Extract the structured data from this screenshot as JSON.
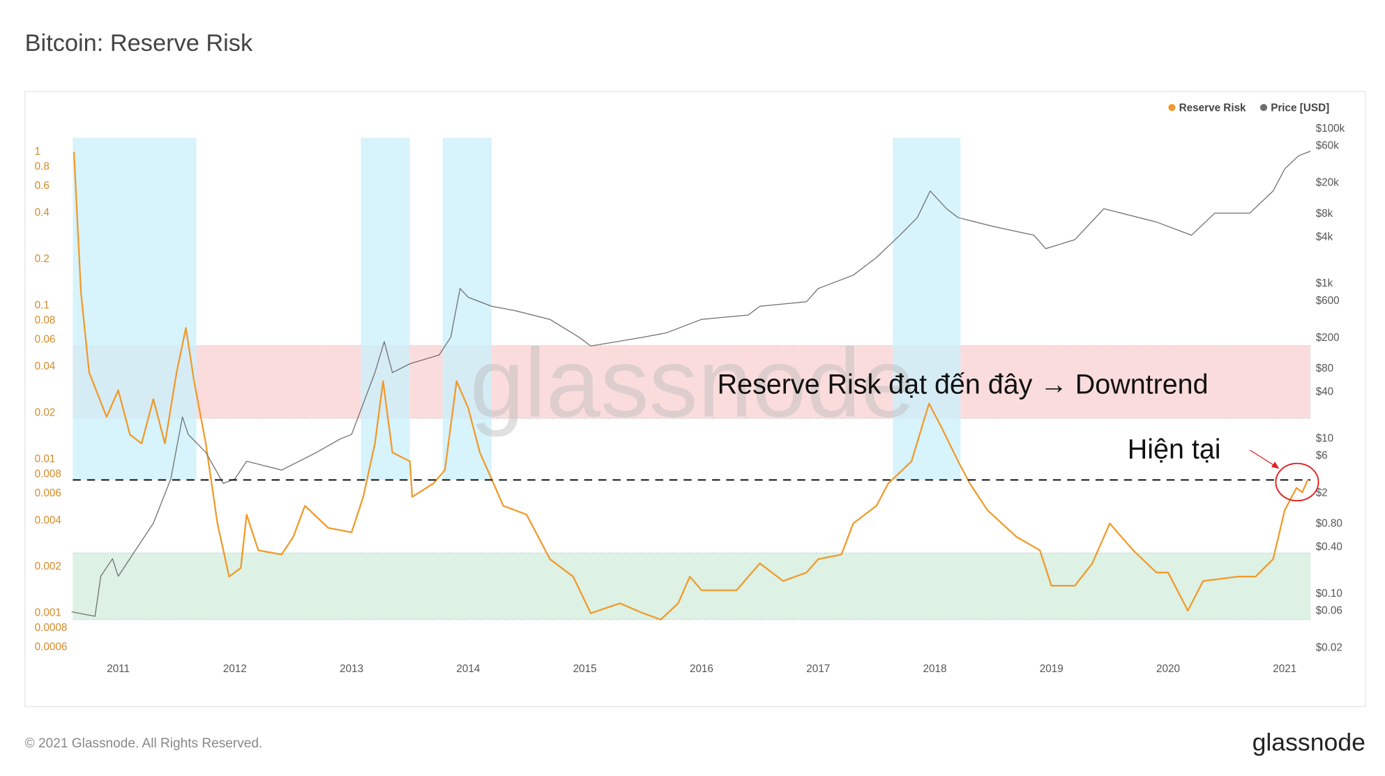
{
  "chart_data": {
    "type": "line",
    "title": "Bitcoin: Reserve Risk",
    "ylog": true,
    "y2log": true,
    "xlim": [
      2010.61,
      2021.22
    ],
    "xticks": [
      2011,
      2012,
      2013,
      2014,
      2015,
      2016,
      2017,
      2018,
      2019,
      2020,
      2021
    ],
    "ylim": [
      0.00052,
      1.237
    ],
    "yticks": [
      1,
      0.8,
      0.6,
      0.4,
      0.2,
      0.1,
      0.08,
      0.06,
      0.04,
      0.02,
      0.01,
      0.008,
      0.006,
      0.004,
      0.002,
      0.001,
      0.0008,
      0.0006
    ],
    "y2lim": [
      0.0154,
      76900
    ],
    "y2ticks": [
      {
        "value": 100000,
        "label": "$100k"
      },
      {
        "value": 60000,
        "label": "$60k"
      },
      {
        "value": 20000,
        "label": "$20k"
      },
      {
        "value": 8000,
        "label": "$8k"
      },
      {
        "value": 4000,
        "label": "$4k"
      },
      {
        "value": 1000,
        "label": "$1k"
      },
      {
        "value": 600,
        "label": "$600"
      },
      {
        "value": 200,
        "label": "$200"
      },
      {
        "value": 80,
        "label": "$80"
      },
      {
        "value": 40,
        "label": "$40"
      },
      {
        "value": 10,
        "label": "$10"
      },
      {
        "value": 6,
        "label": "$6"
      },
      {
        "value": 2,
        "label": "$2"
      },
      {
        "value": 0.8,
        "label": "$0.80"
      },
      {
        "value": 0.4,
        "label": "$0.40"
      },
      {
        "value": 0.1,
        "label": "$0.10"
      },
      {
        "value": 0.06,
        "label": "$0.06"
      },
      {
        "value": 0.02,
        "label": "$0.02"
      }
    ],
    "series": [
      {
        "name": "Reserve Risk",
        "color": "#f09a2b",
        "axis": "y",
        "x": [
          2010.62,
          2010.68,
          2010.75,
          2010.9,
          2011.0,
          2011.1,
          2011.2,
          2011.3,
          2011.4,
          2011.5,
          2011.58,
          2011.65,
          2011.75,
          2011.85,
          2011.95,
          2012.05,
          2012.1,
          2012.2,
          2012.4,
          2012.5,
          2012.6,
          2012.8,
          2013.0,
          2013.1,
          2013.2,
          2013.27,
          2013.35,
          2013.5,
          2013.52,
          2013.7,
          2013.8,
          2013.9,
          2014.0,
          2014.1,
          2014.2,
          2014.3,
          2014.5,
          2014.7,
          2014.9,
          2015.05,
          2015.3,
          2015.5,
          2015.65,
          2015.8,
          2015.9,
          2016.0,
          2016.3,
          2016.5,
          2016.7,
          2016.9,
          2017.0,
          2017.2,
          2017.3,
          2017.5,
          2017.6,
          2017.8,
          2017.95,
          2018.05,
          2018.2,
          2018.3,
          2018.45,
          2018.7,
          2018.9,
          2019.0,
          2019.2,
          2019.35,
          2019.5,
          2019.7,
          2019.9,
          2020.0,
          2020.17,
          2020.3,
          2020.6,
          2020.75,
          2020.9,
          2021.0,
          2021.1,
          2021.15,
          2021.2
        ],
        "values": [
          1.0,
          0.122,
          0.0368,
          0.0189,
          0.0282,
          0.0145,
          0.0127,
          0.0247,
          0.0127,
          0.0368,
          0.0717,
          0.0323,
          0.0127,
          0.00384,
          0.00173,
          0.00197,
          0.00438,
          0.00257,
          0.00241,
          0.00314,
          0.005,
          0.00359,
          0.00336,
          0.00571,
          0.0127,
          0.0323,
          0.0111,
          0.00973,
          0.00571,
          0.00698,
          0.00852,
          0.0323,
          0.0216,
          0.0111,
          0.00747,
          0.005,
          0.00438,
          0.00225,
          0.00173,
          0.001,
          0.00116,
          0.001,
          0.00091,
          0.00116,
          0.00173,
          0.00141,
          0.00141,
          0.00211,
          0.00162,
          0.00184,
          0.00225,
          0.00241,
          0.00384,
          0.005,
          0.00698,
          0.00973,
          0.0231,
          0.0166,
          0.00973,
          0.00698,
          0.00469,
          0.00314,
          0.00257,
          0.00151,
          0.00151,
          0.00211,
          0.00384,
          0.00257,
          0.00184,
          0.00184,
          0.00104,
          0.00162,
          0.00173,
          0.00173,
          0.00225,
          0.00469,
          0.00653,
          0.00611,
          0.00747
        ]
      },
      {
        "name": "Price [USD]",
        "color": "#6e6e6e",
        "axis": "y2",
        "x": [
          2010.6,
          2010.8,
          2010.85,
          2010.95,
          2011.0,
          2011.3,
          2011.45,
          2011.55,
          2011.6,
          2011.75,
          2011.9,
          2012.0,
          2012.1,
          2012.4,
          2012.7,
          2012.9,
          2013.0,
          2013.2,
          2013.28,
          2013.35,
          2013.5,
          2013.75,
          2013.85,
          2013.93,
          2014.0,
          2014.2,
          2014.4,
          2014.7,
          2014.95,
          2015.05,
          2015.5,
          2015.7,
          2016.0,
          2016.4,
          2016.5,
          2016.9,
          2017.0,
          2017.3,
          2017.5,
          2017.7,
          2017.85,
          2017.96,
          2018.1,
          2018.2,
          2018.5,
          2018.85,
          2018.95,
          2019.2,
          2019.45,
          2019.6,
          2019.9,
          2020.2,
          2020.4,
          2020.7,
          2020.9,
          2021.0,
          2021.12,
          2021.22
        ],
        "values": [
          0.0589,
          0.0515,
          0.169,
          0.285,
          0.169,
          0.817,
          3.05,
          19.2,
          11.4,
          6.71,
          2.67,
          3.05,
          5.15,
          3.96,
          6.71,
          9.95,
          11.4,
          71.6,
          180,
          71.6,
          93.3,
          121,
          205,
          873,
          671,
          515,
          452,
          348,
          205,
          158,
          205,
          234,
          348,
          396,
          515,
          589,
          873,
          1295,
          2190,
          4240,
          7170,
          15800,
          9330,
          7170,
          5510,
          4240,
          2850,
          3720,
          9330,
          8170,
          6280,
          4240,
          8170,
          8170,
          15800,
          30500,
          45200,
          51500
        ]
      }
    ],
    "highlight_periods": {
      "color": "#cdf0fb",
      "ranges": [
        [
          2010.61,
          2011.67
        ],
        [
          2013.08,
          2013.5
        ],
        [
          2013.78,
          2014.2
        ],
        [
          2017.64,
          2018.22
        ]
      ]
    },
    "zones": [
      {
        "color": "#fbdcdc",
        "range": [
          0.0185,
          0.055
        ]
      },
      {
        "color": "#ddf1e4",
        "range": [
          0.00091,
          0.00247
        ]
      }
    ],
    "threshold": 0.00736,
    "annotations": [
      "Reserve Risk đạt đến đây → Downtrend",
      "Hiện tại"
    ],
    "watermark": "glassnode"
  },
  "footer": {
    "copyright": "© 2021 Glassnode. All Rights Reserved.",
    "logo": "glassnode"
  }
}
